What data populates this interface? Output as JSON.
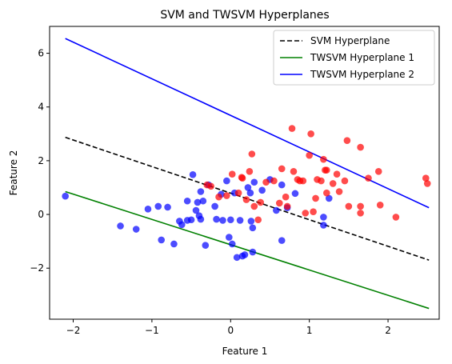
{
  "chart_data": {
    "type": "scatter",
    "title": "SVM and TWSVM Hyperplanes",
    "xlabel": "Feature 1",
    "ylabel": "Feature 2",
    "xlim": [
      -2.3,
      2.65
    ],
    "ylim": [
      -3.9,
      7.0
    ],
    "xticks": [
      -2,
      -1,
      0,
      1,
      2
    ],
    "yticks": [
      -2,
      0,
      2,
      4,
      6
    ],
    "xtick_labels": [
      "−2",
      "−1",
      "0",
      "1",
      "2"
    ],
    "ytick_labels": [
      "−2",
      "0",
      "2",
      "4",
      "6"
    ],
    "grid": false,
    "legend_position": "top-right",
    "lines": [
      {
        "name": "SVM Hyperplane",
        "color": "#000000",
        "style": "dashed",
        "x": [
          -2.1,
          2.52
        ],
        "y": [
          2.87,
          -1.7
        ]
      },
      {
        "name": "TWSVM Hyperplane 1",
        "color": "#008000",
        "style": "solid",
        "x": [
          -2.1,
          2.52
        ],
        "y": [
          0.85,
          -3.5
        ]
      },
      {
        "name": "TWSVM Hyperplane 2",
        "color": "#0000ff",
        "style": "solid",
        "x": [
          -2.1,
          2.52
        ],
        "y": [
          6.55,
          0.25
        ]
      }
    ],
    "scatter": [
      {
        "color": "#0000ff",
        "points": [
          [
            -2.1,
            0.68
          ],
          [
            -1.4,
            -0.43
          ],
          [
            -1.2,
            -0.55
          ],
          [
            -1.05,
            0.2
          ],
          [
            -0.92,
            0.3
          ],
          [
            -0.88,
            -0.95
          ],
          [
            -0.8,
            0.27
          ],
          [
            -0.72,
            -1.1
          ],
          [
            -0.65,
            -0.25
          ],
          [
            -0.62,
            -0.38
          ],
          [
            -0.55,
            -0.22
          ],
          [
            -0.55,
            0.5
          ],
          [
            -0.5,
            -0.2
          ],
          [
            -0.48,
            1.48
          ],
          [
            -0.44,
            0.15
          ],
          [
            -0.42,
            0.45
          ],
          [
            -0.4,
            -0.05
          ],
          [
            -0.38,
            -0.18
          ],
          [
            -0.38,
            0.85
          ],
          [
            -0.35,
            0.5
          ],
          [
            -0.32,
            -1.15
          ],
          [
            -0.28,
            1.1
          ],
          [
            -0.2,
            0.3
          ],
          [
            -0.18,
            -0.18
          ],
          [
            -0.12,
            0.75
          ],
          [
            -0.1,
            -0.22
          ],
          [
            -0.05,
            1.25
          ],
          [
            -0.02,
            -0.85
          ],
          [
            0.0,
            -0.2
          ],
          [
            0.02,
            -1.1
          ],
          [
            0.05,
            0.8
          ],
          [
            0.08,
            -1.6
          ],
          [
            0.12,
            -0.22
          ],
          [
            0.15,
            -1.55
          ],
          [
            0.18,
            -1.5
          ],
          [
            0.22,
            1.0
          ],
          [
            0.25,
            0.8
          ],
          [
            0.26,
            -0.25
          ],
          [
            0.28,
            -1.4
          ],
          [
            0.28,
            -0.5
          ],
          [
            0.3,
            1.2
          ],
          [
            0.4,
            0.9
          ],
          [
            0.5,
            1.3
          ],
          [
            0.58,
            0.15
          ],
          [
            0.65,
            1.1
          ],
          [
            0.65,
            -0.97
          ],
          [
            0.72,
            0.25
          ],
          [
            0.82,
            0.78
          ],
          [
            1.18,
            -0.1
          ],
          [
            1.18,
            -0.4
          ],
          [
            1.25,
            0.6
          ]
        ]
      },
      {
        "color": "#ff0000",
        "points": [
          [
            -0.3,
            1.1
          ],
          [
            -0.25,
            1.05
          ],
          [
            -0.15,
            0.65
          ],
          [
            -0.05,
            0.7
          ],
          [
            0.02,
            1.5
          ],
          [
            0.1,
            0.8
          ],
          [
            0.14,
            1.38
          ],
          [
            0.15,
            1.35
          ],
          [
            0.2,
            0.55
          ],
          [
            0.24,
            1.6
          ],
          [
            0.27,
            2.25
          ],
          [
            0.3,
            0.3
          ],
          [
            0.35,
            -0.2
          ],
          [
            0.38,
            0.45
          ],
          [
            0.45,
            1.2
          ],
          [
            0.55,
            1.25
          ],
          [
            0.62,
            0.42
          ],
          [
            0.65,
            1.7
          ],
          [
            0.7,
            0.65
          ],
          [
            0.72,
            0.3
          ],
          [
            0.78,
            3.2
          ],
          [
            0.8,
            1.6
          ],
          [
            0.85,
            1.3
          ],
          [
            0.88,
            1.25
          ],
          [
            0.92,
            1.25
          ],
          [
            0.95,
            0.05
          ],
          [
            1.0,
            2.2
          ],
          [
            1.02,
            3.0
          ],
          [
            1.05,
            0.1
          ],
          [
            1.08,
            0.6
          ],
          [
            1.1,
            1.3
          ],
          [
            1.15,
            1.25
          ],
          [
            1.18,
            2.05
          ],
          [
            1.2,
            1.65
          ],
          [
            1.22,
            1.65
          ],
          [
            1.22,
            0.8
          ],
          [
            1.3,
            1.15
          ],
          [
            1.35,
            1.5
          ],
          [
            1.38,
            0.85
          ],
          [
            1.45,
            1.25
          ],
          [
            1.48,
            2.75
          ],
          [
            1.5,
            0.3
          ],
          [
            1.65,
            0.3
          ],
          [
            1.65,
            0.05
          ],
          [
            1.65,
            2.5
          ],
          [
            1.75,
            1.35
          ],
          [
            1.88,
            1.6
          ],
          [
            1.9,
            0.35
          ],
          [
            2.1,
            -0.1
          ],
          [
            2.48,
            1.35
          ],
          [
            2.5,
            1.15
          ]
        ]
      }
    ]
  }
}
